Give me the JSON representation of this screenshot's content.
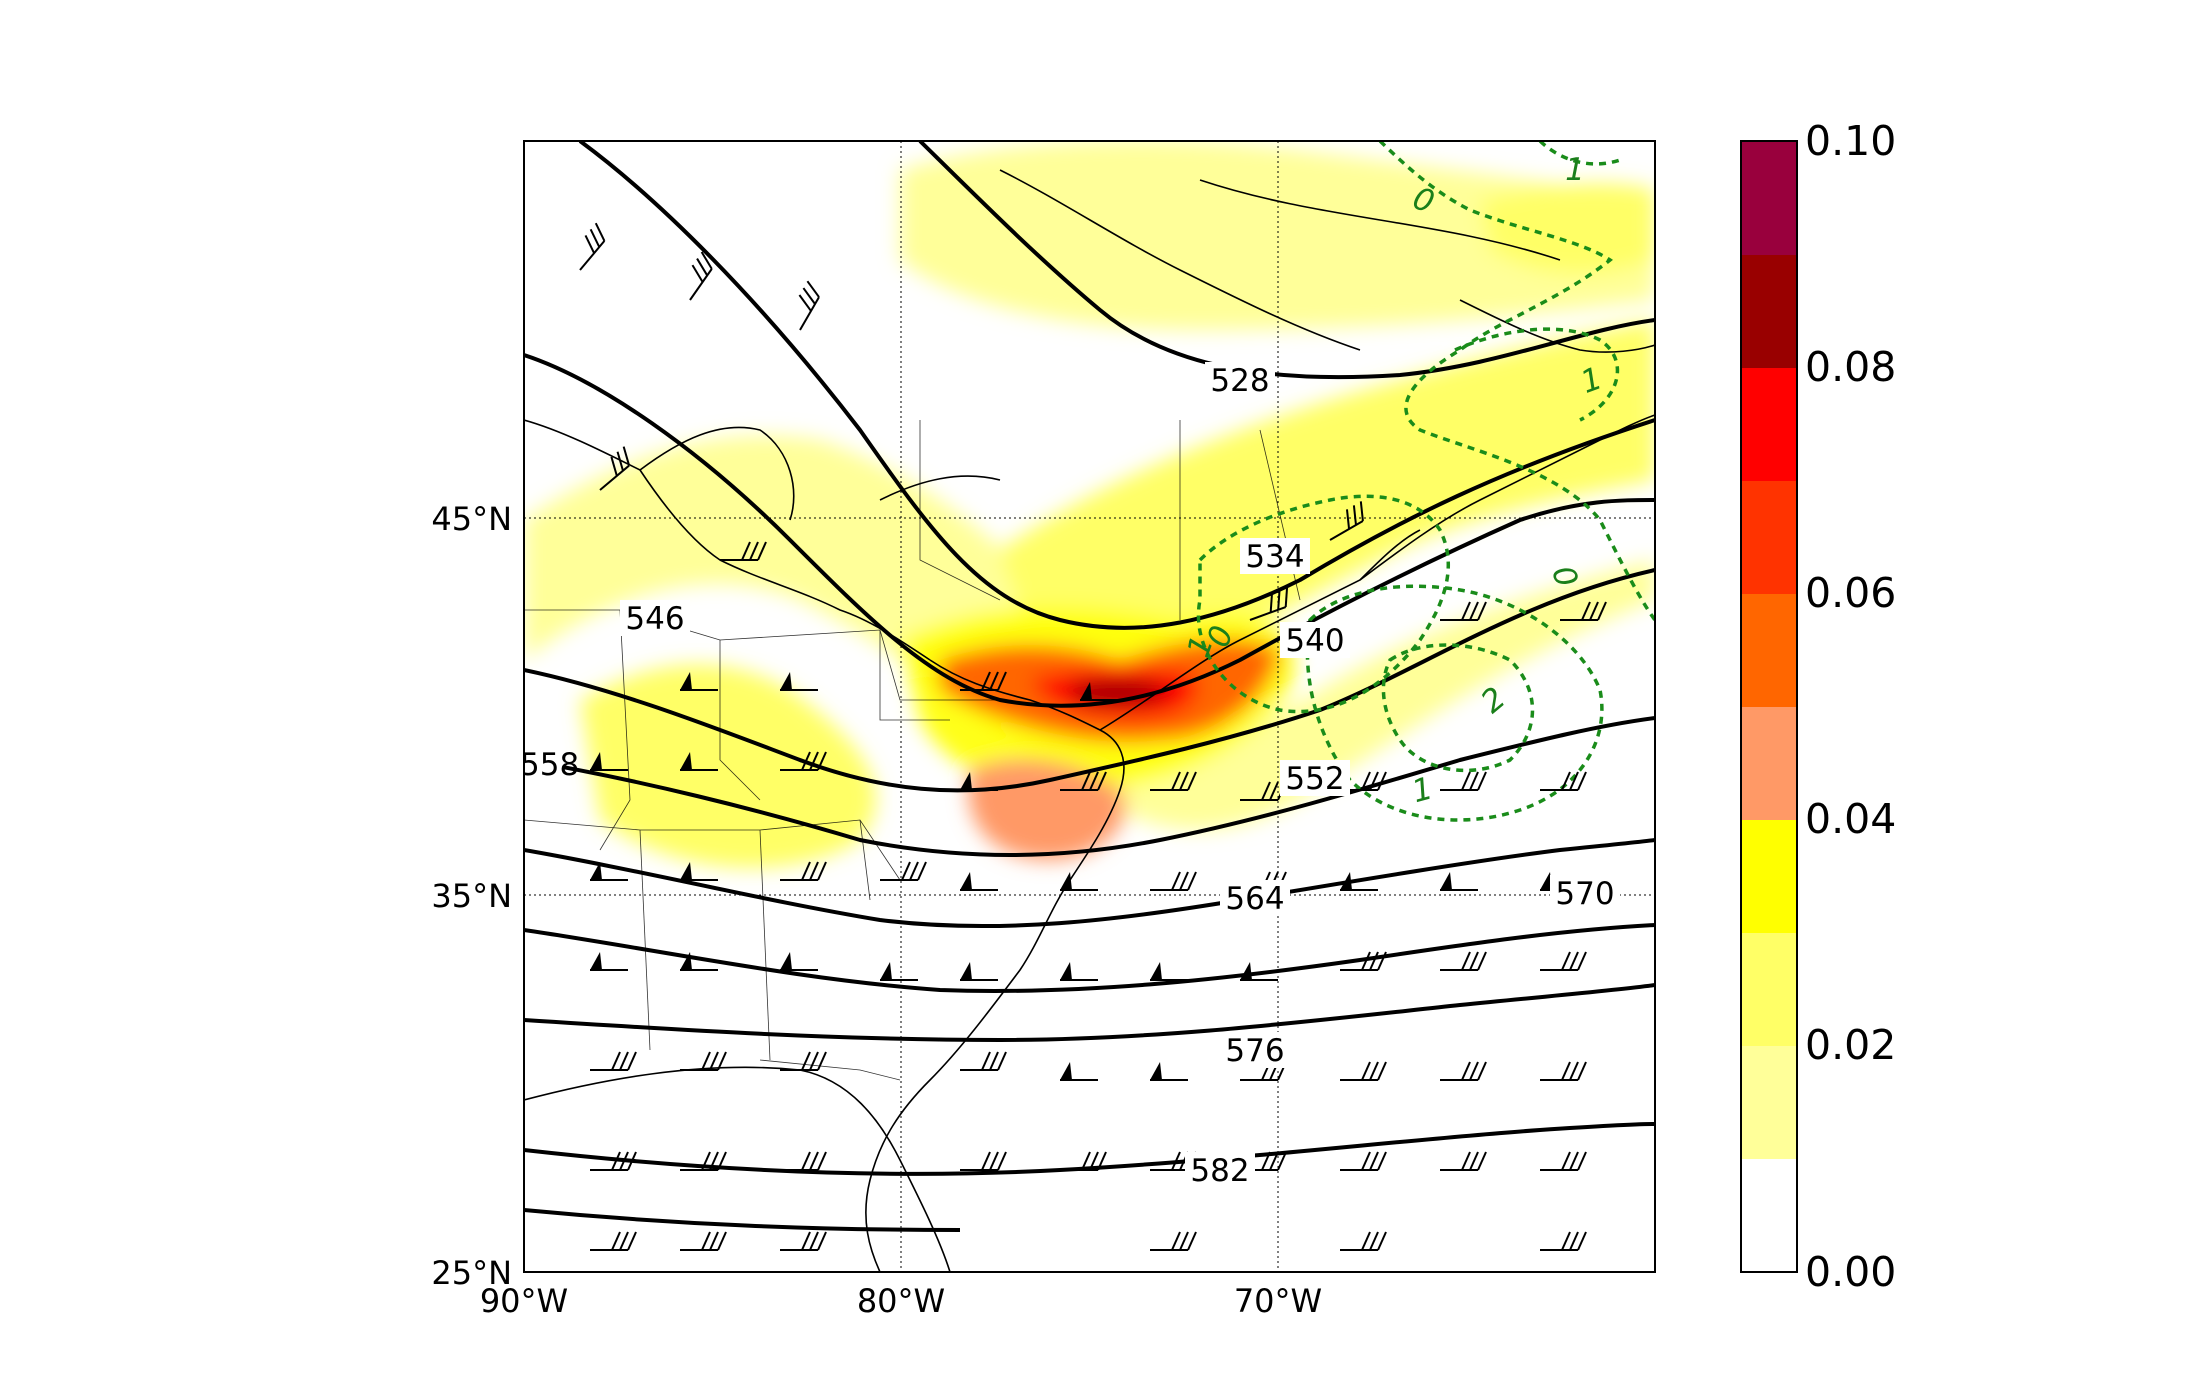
{
  "map": {
    "lon_labels": [
      "90°W",
      "80°W",
      "70°W"
    ],
    "lat_labels": [
      "45°N",
      "35°N",
      "25°N"
    ],
    "height_contour_labels": [
      "528",
      "534",
      "540",
      "546",
      "552",
      "558",
      "564",
      "570",
      "576",
      "582"
    ],
    "green_contour_labels": [
      "0",
      "1",
      "0",
      "1",
      "0",
      "1",
      "2",
      "1"
    ],
    "colors": {
      "height_contours": "#000000",
      "dashed_contours": "#1a8c1a"
    },
    "icons": [
      "wind-barb-icon"
    ]
  },
  "colorbar": {
    "tick_labels": [
      "0.10",
      "0.08",
      "0.06",
      "0.04",
      "0.02",
      "0.00"
    ],
    "levels": [
      0.0,
      0.01,
      0.02,
      0.03,
      0.04,
      0.05,
      0.06,
      0.07,
      0.08,
      0.09,
      0.1
    ],
    "colors": [
      "#ffffff",
      "#ffff99",
      "#ffff66",
      "#ffff33",
      "#ffff00",
      "#ff9966",
      "#ff6600",
      "#ff3300",
      "#ff0000",
      "#990000",
      "#99003d"
    ]
  }
}
